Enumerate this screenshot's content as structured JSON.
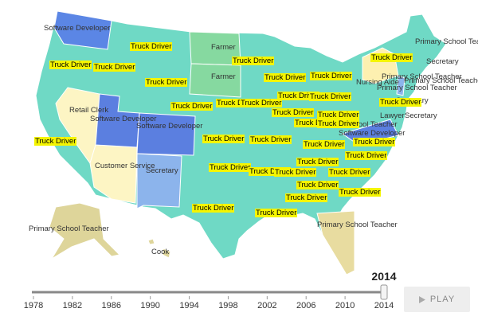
{
  "map": {
    "labels": [
      "Software Developer",
      "Farmer",
      "Farmer",
      "Retail Clerk",
      "Software Developer",
      "Software Developer",
      "Customer Service",
      "Secretary",
      "Primary School Teacher",
      "Cook",
      "Primary School Teacher",
      "Primary School Teacher",
      "Secretary",
      "Primary School Teacher",
      "Primary School Teacher",
      "Primary School Teacher",
      "Nursing Aide",
      "Secretary",
      "Lawyer",
      "Secretary",
      "Primary School Teacher",
      "Software Developer"
    ],
    "highlighted_labels": [
      "Truck Driver",
      "Truck Driver",
      "Truck Driver",
      "Truck Driver",
      "Truck Driver",
      "Truck Driver",
      "Truck Driver",
      "Truck Driver",
      "Truck Driver",
      "Truck Driver",
      "Truck Driver",
      "Truck Driver",
      "Truck Driver",
      "Truck Driver",
      "Truck Driver",
      "Truck Driver",
      "Truck Driver",
      "Truck Driver",
      "Truck Driver",
      "Truck Driver",
      "Truck Driver",
      "Truck Driver",
      "Truck Driver",
      "Truck Driver",
      "Truck Driver",
      "Truck Driver",
      "Truck Driver",
      "Truck Driver",
      "Truck Driver",
      "Truck Driver",
      "Truck Driver",
      "Truck Driver",
      "Truck Driver",
      "Truck Driver"
    ]
  },
  "timeline": {
    "years": [
      1978,
      1982,
      1986,
      1990,
      1994,
      1998,
      2002,
      2006,
      2010,
      2014
    ],
    "current": 2014,
    "button": "PLAY"
  }
}
